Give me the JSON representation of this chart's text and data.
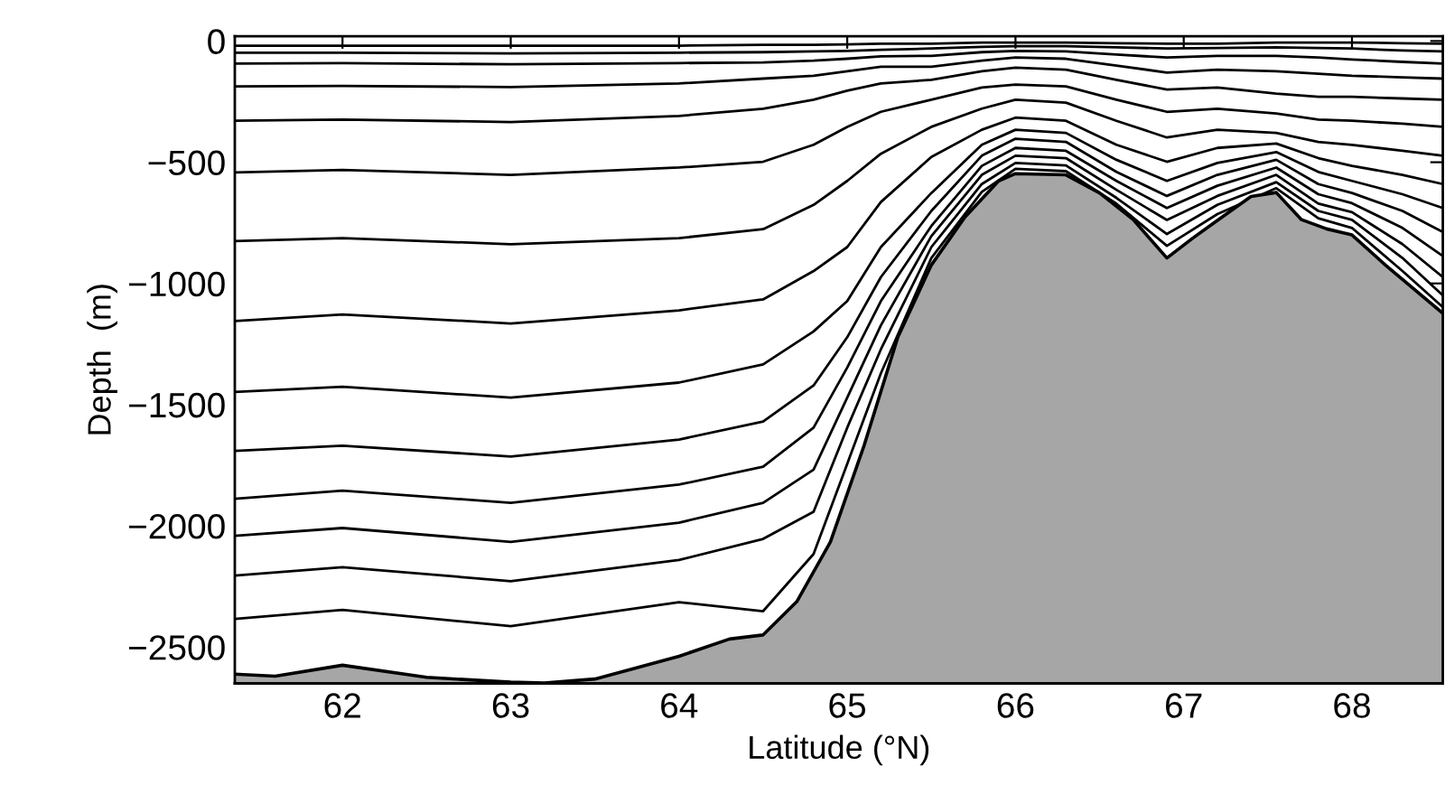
{
  "chart_data": {
    "type": "line",
    "xlabel": "Latitude (°N)",
    "ylabel": "Depth  (m)",
    "xlim": [
      61.36,
      68.54
    ],
    "ylim": [
      -2650,
      20
    ],
    "xticks": [
      62,
      63,
      64,
      65,
      66,
      67,
      68
    ],
    "yticks": [
      {
        "value": 0,
        "label": "0"
      },
      {
        "value": -500,
        "label": "−500"
      },
      {
        "value": -1000,
        "label": "−1000"
      },
      {
        "value": -1500,
        "label": "−1500"
      },
      {
        "value": -2000,
        "label": "−2000"
      },
      {
        "value": -2500,
        "label": "−2500"
      }
    ],
    "grid": false,
    "legend": false,
    "marker": "none",
    "line_style": "solid",
    "x": [
      61.36,
      62.0,
      63.0,
      64.0,
      64.5,
      64.8,
      65.0,
      65.2,
      65.5,
      65.8,
      66.0,
      66.3,
      66.6,
      66.9,
      67.2,
      67.55,
      67.8,
      68.0,
      68.3,
      68.54
    ],
    "series": [
      {
        "color": "#000000",
        "values": [
          -19,
          -19,
          -19,
          -19,
          -16,
          -16,
          -14,
          -11,
          -11,
          -6,
          -6,
          -6,
          -9,
          -11,
          -11,
          -6,
          -6,
          -6,
          -9,
          -11
        ]
      },
      {
        "color": "#000000",
        "values": [
          -48,
          -48,
          -51,
          -48,
          -46,
          -43,
          -41,
          -36,
          -31,
          -24,
          -21,
          -21,
          -26,
          -31,
          -29,
          -26,
          -29,
          -31,
          -39,
          -43
        ]
      },
      {
        "color": "#000000",
        "values": [
          -93,
          -91,
          -96,
          -91,
          -88,
          -81,
          -73,
          -63,
          -61,
          -46,
          -41,
          -43,
          -56,
          -68,
          -61,
          -61,
          -68,
          -76,
          -86,
          -93
        ]
      },
      {
        "color": "#000000",
        "values": [
          -187,
          -185,
          -190,
          -175,
          -155,
          -143,
          -125,
          -106,
          -106,
          -81,
          -68,
          -73,
          -101,
          -130,
          -118,
          -125,
          -135,
          -143,
          -150,
          -155
        ]
      },
      {
        "color": "#000000",
        "values": [
          -329,
          -324,
          -334,
          -309,
          -279,
          -242,
          -205,
          -175,
          -160,
          -125,
          -110,
          -118,
          -160,
          -200,
          -192,
          -217,
          -230,
          -230,
          -237,
          -242
        ]
      },
      {
        "color": "#000000",
        "values": [
          -542,
          -532,
          -552,
          -522,
          -498,
          -428,
          -354,
          -292,
          -242,
          -192,
          -180,
          -187,
          -242,
          -292,
          -279,
          -299,
          -324,
          -329,
          -341,
          -354
        ]
      },
      {
        "color": "#000000",
        "values": [
          -825,
          -813,
          -838,
          -813,
          -776,
          -676,
          -577,
          -465,
          -354,
          -279,
          -242,
          -254,
          -329,
          -398,
          -366,
          -379,
          -416,
          -428,
          -453,
          -473
        ]
      },
      {
        "color": "#000000",
        "values": [
          -1155,
          -1128,
          -1165,
          -1111,
          -1066,
          -949,
          -850,
          -664,
          -478,
          -366,
          -316,
          -329,
          -428,
          -498,
          -441,
          -423,
          -483,
          -515,
          -552,
          -590
        ]
      },
      {
        "color": "#000000",
        "values": [
          -1448,
          -1426,
          -1471,
          -1409,
          -1334,
          -1198,
          -1073,
          -850,
          -627,
          -428,
          -366,
          -379,
          -490,
          -577,
          -503,
          -458,
          -540,
          -577,
          -632,
          -689
        ]
      },
      {
        "color": "#000000",
        "values": [
          -1691,
          -1669,
          -1714,
          -1644,
          -1570,
          -1421,
          -1222,
          -974,
          -701,
          -473,
          -403,
          -416,
          -540,
          -639,
          -552,
          -490,
          -590,
          -627,
          -701,
          -788
        ]
      },
      {
        "color": "#000000",
        "values": [
          -1888,
          -1855,
          -1905,
          -1830,
          -1756,
          -1595,
          -1347,
          -1073,
          -763,
          -515,
          -441,
          -453,
          -577,
          -689,
          -597,
          -522,
          -632,
          -669,
          -771,
          -887
        ]
      },
      {
        "color": "#000000",
        "values": [
          -2041,
          -2009,
          -2066,
          -1987,
          -1905,
          -1768,
          -1471,
          -1173,
          -805,
          -552,
          -473,
          -483,
          -614,
          -738,
          -639,
          -552,
          -671,
          -706,
          -838,
          -974
        ]
      },
      {
        "color": "#000000",
        "values": [
          -2205,
          -2171,
          -2228,
          -2141,
          -2054,
          -1942,
          -1595,
          -1272,
          -850,
          -590,
          -503,
          -513,
          -647,
          -796,
          -676,
          -582,
          -701,
          -738,
          -895,
          -1049
        ]
      },
      {
        "color": "#000000",
        "values": [
          -2384,
          -2347,
          -2414,
          -2315,
          -2352,
          -2116,
          -1744,
          -1371,
          -895,
          -622,
          -527,
          -537,
          -671,
          -845,
          -714,
          -607,
          -731,
          -771,
          -949,
          -1098
        ]
      },
      {
        "type": "area",
        "color": "#a6a6a6",
        "x": [
          61.36,
          61.6,
          62.0,
          62.5,
          63.0,
          63.2,
          63.5,
          64.0,
          64.3,
          64.5,
          64.7,
          64.9,
          65.1,
          65.3,
          65.5,
          65.7,
          65.9,
          66.0,
          66.3,
          66.5,
          66.7,
          66.9,
          67.05,
          67.2,
          67.4,
          67.55,
          67.7,
          67.85,
          68.0,
          68.2,
          68.54
        ],
        "values": [
          -2612,
          -2620,
          -2575,
          -2625,
          -2645,
          -2648,
          -2632,
          -2538,
          -2467,
          -2450,
          -2313,
          -2066,
          -1669,
          -1223,
          -924,
          -726,
          -577,
          -547,
          -552,
          -627,
          -737,
          -895,
          -815,
          -740,
          -641,
          -625,
          -737,
          -775,
          -800,
          -925,
          -1123
        ]
      }
    ]
  }
}
